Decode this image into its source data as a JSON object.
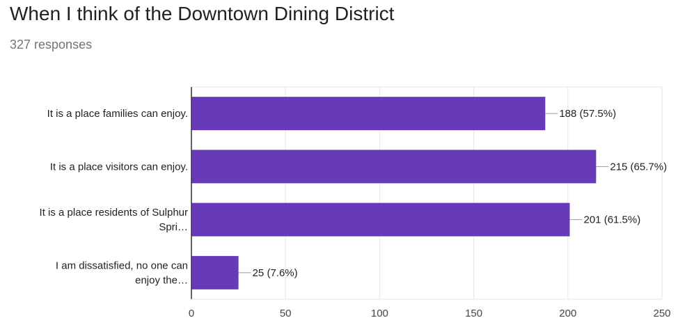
{
  "header": {
    "title": "When I think of the Downtown Dining District",
    "responses": "327 responses"
  },
  "colors": {
    "bar": "#673ab7",
    "grid": "#e6e6e6",
    "axis": "#333333",
    "leader": "#999999"
  },
  "chart_data": {
    "type": "bar",
    "orientation": "horizontal",
    "title": "When I think of the Downtown Dining District",
    "categories": [
      [
        "It is a place families can enjoy."
      ],
      [
        "It is a place visitors can enjoy."
      ],
      [
        "It is a place residents of Sulphur",
        "Spri…"
      ],
      [
        "I am dissatisfied, no one can",
        "enjoy the…"
      ]
    ],
    "values": [
      188,
      215,
      201,
      25
    ],
    "data_labels": [
      "188 (57.5%)",
      "215 (65.7%)",
      "201 (61.5%)",
      "25 (7.6%)"
    ],
    "xlim": [
      0,
      250
    ],
    "xticks": [
      0,
      50,
      100,
      150,
      200,
      250
    ],
    "xtick_labels": [
      "0",
      "50",
      "100",
      "150",
      "200",
      "250"
    ],
    "grid": true,
    "legend": "none"
  }
}
